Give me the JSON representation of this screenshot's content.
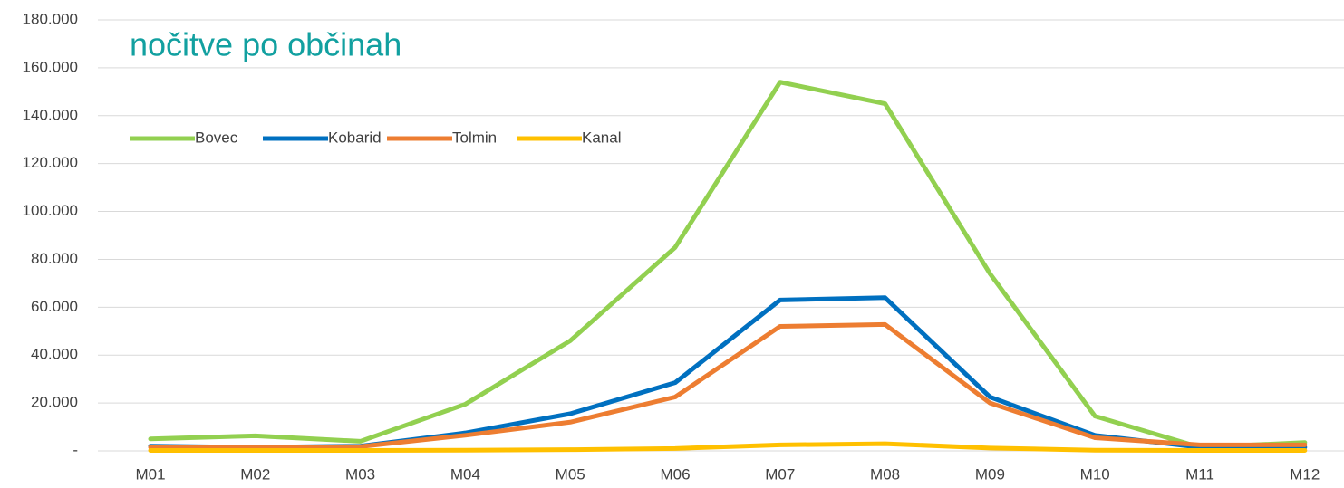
{
  "chart_data": {
    "type": "line",
    "title": "nočitve po občinah",
    "categories": [
      "M01",
      "M02",
      "M03",
      "M04",
      "M05",
      "M06",
      "M07",
      "M08",
      "M09",
      "M10",
      "M11",
      "M12"
    ],
    "series": [
      {
        "name": "Bovec",
        "color": "#92d050",
        "values": [
          5000,
          6300,
          4000,
          19500,
          46000,
          85000,
          154000,
          145000,
          74000,
          14500,
          1500,
          3500
        ]
      },
      {
        "name": "Kobarid",
        "color": "#0070c0",
        "values": [
          2000,
          1500,
          2000,
          7500,
          15500,
          28500,
          63000,
          64000,
          22500,
          6500,
          1500,
          1500
        ]
      },
      {
        "name": "Tolmin",
        "color": "#ed7d31",
        "values": [
          1500,
          1500,
          1800,
          6500,
          12000,
          22500,
          52000,
          52800,
          20000,
          5500,
          2500,
          2500
        ]
      },
      {
        "name": "Kanal",
        "color": "#ffc000",
        "values": [
          200,
          200,
          200,
          300,
          500,
          1000,
          2500,
          3000,
          1200,
          300,
          200,
          200
        ]
      }
    ],
    "ylim": [
      0,
      180000
    ],
    "yticks": [
      {
        "value": 0,
        "label": "-"
      },
      {
        "value": 20000,
        "label": "20.000"
      },
      {
        "value": 40000,
        "label": "40.000"
      },
      {
        "value": 60000,
        "label": "60.000"
      },
      {
        "value": 80000,
        "label": "80.000"
      },
      {
        "value": 100000,
        "label": "100.000"
      },
      {
        "value": 120000,
        "label": "120.000"
      },
      {
        "value": 140000,
        "label": "140.000"
      },
      {
        "value": 160000,
        "label": "160.000"
      },
      {
        "value": 180000,
        "label": "180.000"
      }
    ],
    "grid": true,
    "legend": "top-left"
  }
}
